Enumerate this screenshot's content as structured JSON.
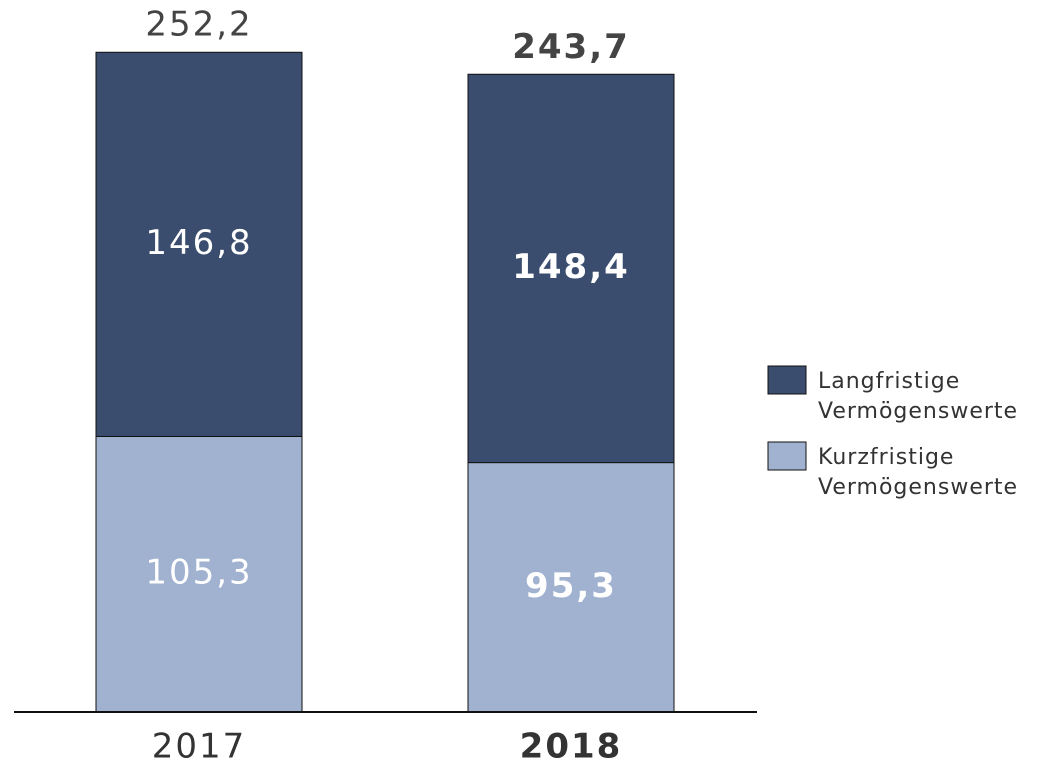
{
  "chart_data": {
    "type": "stacked_bar",
    "categories": [
      "2017",
      "2018"
    ],
    "series": [
      {
        "name": "Kurzfristige Vermögenswerte",
        "color": "#a0b2d0",
        "values": [
          105.3,
          95.3
        ],
        "value_labels": [
          "105,3",
          "95,3"
        ]
      },
      {
        "name": "Langfristige Vermögenswerte",
        "color": "#3a4d6e",
        "values": [
          146.8,
          148.4
        ],
        "value_labels": [
          "146,8",
          "148,4"
        ]
      }
    ],
    "totals": [
      252.2,
      243.7
    ],
    "total_labels": [
      "252,2",
      "243,7"
    ],
    "ylim": [
      0,
      260
    ],
    "legend": "right"
  }
}
